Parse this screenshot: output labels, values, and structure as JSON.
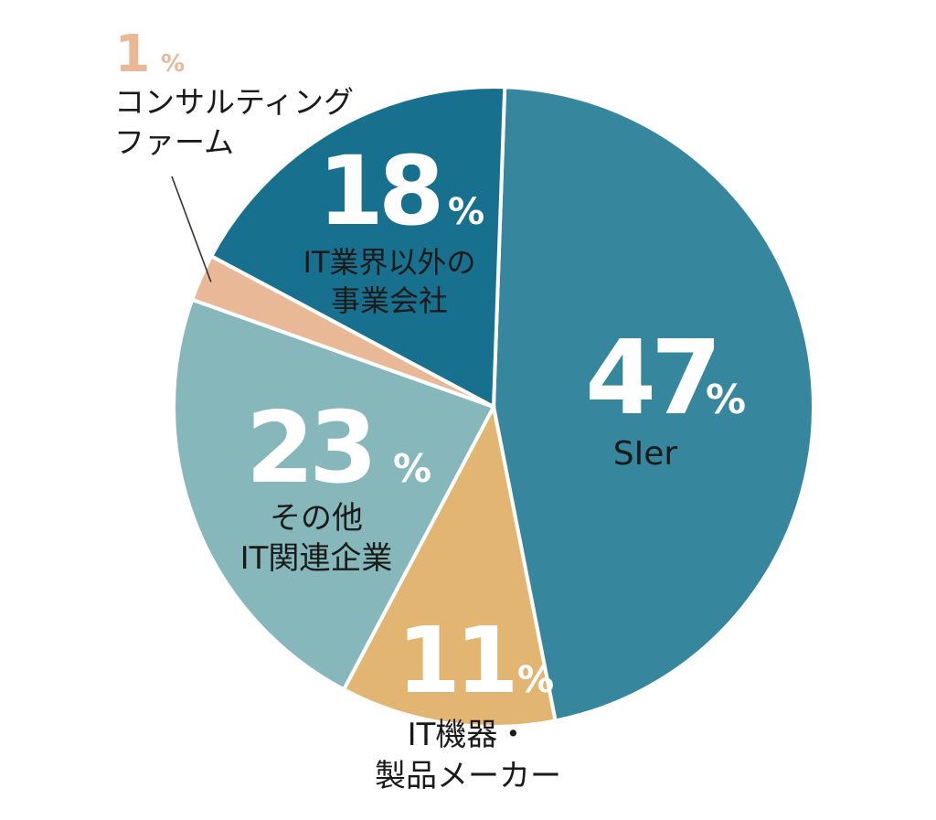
{
  "chart_data": {
    "type": "pie",
    "title": "",
    "unit": "%",
    "slices": [
      {
        "label_lines": [
          "SIer"
        ],
        "value": 47,
        "color": "#36869e",
        "text_color": "#1a1a1a"
      },
      {
        "label_lines": [
          "IT機器・",
          "製品メーカー"
        ],
        "value": 11,
        "color": "#e3b572",
        "text_color": "#1a1a1a"
      },
      {
        "label_lines": [
          "その他",
          "IT関連企業"
        ],
        "value": 23,
        "color": "#86b8bb",
        "text_color": "#1a1a1a"
      },
      {
        "label_lines": [
          "コンサルティング",
          "ファーム"
        ],
        "value": 1,
        "color": "#e9b897",
        "text_color": "#1a1a1a"
      },
      {
        "label_lines": [
          "IT業界以外の",
          "事業会社"
        ],
        "value": 18,
        "color": "#17708e",
        "text_color": "#1a1a1a"
      }
    ],
    "value_text_color": "#ffffff",
    "small_value_text_color": "#e9b897",
    "leader_line_color": "#333333"
  }
}
